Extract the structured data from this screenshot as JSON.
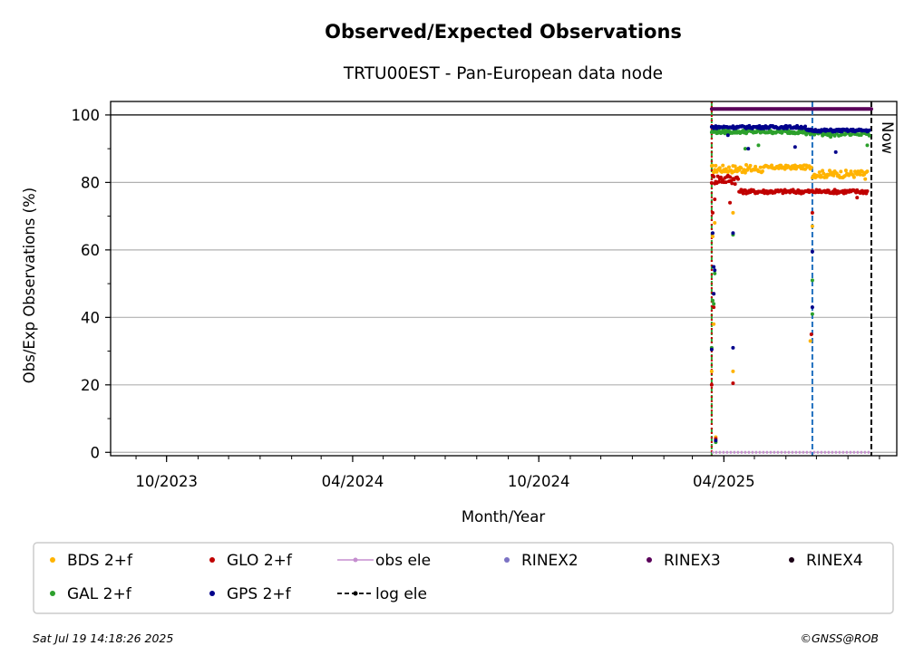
{
  "chart_data": {
    "type": "scatter",
    "title": "Observed/Expected Observations",
    "subtitle": "TRTU00EST - Pan-European data node",
    "xlabel": "Month/Year",
    "ylabel": "Obs/Exp Observations (%)",
    "ylim": [
      -1,
      104
    ],
    "xlim": [
      "2023-08-07",
      "2025-09-18"
    ],
    "yticks": [
      0,
      20,
      40,
      60,
      80,
      100
    ],
    "xticks": [
      {
        "date": "2023-10-01",
        "label": "10/2023"
      },
      {
        "date": "2024-04-01",
        "label": "04/2024"
      },
      {
        "date": "2024-10-01",
        "label": "10/2024"
      },
      {
        "date": "2025-04-01",
        "label": "04/2025"
      }
    ],
    "grid": "horizontal",
    "legend_position": "bottom",
    "reference_line_y": 100,
    "vertical_markers": [
      {
        "date": "2025-03-20",
        "color": "#2ca02c",
        "style": "dashed"
      },
      {
        "date": "2025-03-20",
        "color": "#c00000",
        "style": "dotted"
      },
      {
        "date": "2025-06-27",
        "color": "#1f6fbf",
        "style": "dashed"
      },
      {
        "date": "2025-08-24",
        "color": "#000000",
        "style": "dashed"
      }
    ],
    "now_label": "Now",
    "series": [
      {
        "name": "BDS 2+f",
        "color": "#ffb300",
        "marker": "dot",
        "segments": [
          {
            "start": "2025-03-20",
            "end": "2025-05-15",
            "base": 84,
            "jitter": 1.2
          },
          {
            "start": "2025-05-16",
            "end": "2025-06-26",
            "base": 84.5,
            "jitter": 0.6
          },
          {
            "start": "2025-06-27",
            "end": "2025-08-20",
            "base": 82.5,
            "jitter": 1.1
          }
        ],
        "outliers": [
          [
            "2025-03-20",
            24
          ],
          [
            "2025-03-21",
            64
          ],
          [
            "2025-03-23",
            68
          ],
          [
            "2025-03-22",
            38
          ],
          [
            "2025-03-24",
            4.5
          ],
          [
            "2025-04-10",
            71
          ],
          [
            "2025-04-10",
            24
          ],
          [
            "2025-06-27",
            67
          ],
          [
            "2025-06-25",
            33
          ],
          [
            "2025-07-05",
            82
          ],
          [
            "2025-08-18",
            81
          ]
        ]
      },
      {
        "name": "GLO 2+f",
        "color": "#c00000",
        "marker": "dot",
        "segments": [
          {
            "start": "2025-03-20",
            "end": "2025-04-15",
            "base": 81,
            "jitter": 1.5
          },
          {
            "start": "2025-04-16",
            "end": "2025-08-20",
            "base": 77.3,
            "jitter": 0.6
          }
        ],
        "outliers": [
          [
            "2025-03-20",
            20
          ],
          [
            "2025-03-21",
            71
          ],
          [
            "2025-03-22",
            47
          ],
          [
            "2025-03-22",
            43
          ],
          [
            "2025-03-23",
            75
          ],
          [
            "2025-03-24",
            4
          ],
          [
            "2025-04-07",
            74
          ],
          [
            "2025-04-10",
            20.5
          ],
          [
            "2025-06-27",
            71
          ],
          [
            "2025-06-26",
            35
          ],
          [
            "2025-08-10",
            75.5
          ]
        ]
      },
      {
        "name": "GAL 2+f",
        "color": "#2ca02c",
        "marker": "dot",
        "segments": [
          {
            "start": "2025-03-20",
            "end": "2025-06-20",
            "base": 95,
            "jitter": 0.5
          },
          {
            "start": "2025-06-21",
            "end": "2025-08-22",
            "base": 94.6,
            "jitter": 0.8
          }
        ],
        "outliers": [
          [
            "2025-03-20",
            31
          ],
          [
            "2025-03-21",
            45
          ],
          [
            "2025-03-22",
            44
          ],
          [
            "2025-03-23",
            53
          ],
          [
            "2025-03-24",
            3
          ],
          [
            "2025-04-10",
            64.5
          ],
          [
            "2025-04-22",
            90
          ],
          [
            "2025-05-05",
            91
          ],
          [
            "2025-06-27",
            51
          ],
          [
            "2025-06-27",
            41
          ],
          [
            "2025-07-15",
            93.5
          ],
          [
            "2025-08-20",
            91
          ]
        ]
      },
      {
        "name": "GPS 2+f",
        "color": "#00008b",
        "marker": "dot",
        "segments": [
          {
            "start": "2025-03-20",
            "end": "2025-06-20",
            "base": 96.4,
            "jitter": 0.4
          },
          {
            "start": "2025-06-21",
            "end": "2025-08-22",
            "base": 95.4,
            "jitter": 0.4
          }
        ],
        "outliers": [
          [
            "2025-03-20",
            30.5
          ],
          [
            "2025-03-21",
            65
          ],
          [
            "2025-03-22",
            55
          ],
          [
            "2025-03-22",
            47
          ],
          [
            "2025-03-23",
            54
          ],
          [
            "2025-03-24",
            3.5
          ],
          [
            "2025-04-10",
            65
          ],
          [
            "2025-04-10",
            31
          ],
          [
            "2025-04-05",
            94
          ],
          [
            "2025-04-25",
            90
          ],
          [
            "2025-06-10",
            90.5
          ],
          [
            "2025-06-27",
            59.5
          ],
          [
            "2025-06-27",
            43
          ],
          [
            "2025-07-20",
            89
          ]
        ]
      },
      {
        "name": "obs ele",
        "color": "#c58ecf",
        "marker": "line",
        "segments": [
          {
            "start": "2025-03-20",
            "end": "2025-08-24",
            "base": 0,
            "jitter": 0
          }
        ],
        "outliers": []
      },
      {
        "name": "RINEX2",
        "color": "#7b72c4",
        "marker": "dot",
        "segments": [],
        "outliers": []
      },
      {
        "name": "RINEX3",
        "color": "#5a005a",
        "marker": "dot",
        "segments": [
          {
            "start": "2025-03-20",
            "end": "2025-08-24",
            "base": 101.8,
            "jitter": 0
          }
        ],
        "outliers": []
      },
      {
        "name": "RINEX4",
        "color": "#1a0015",
        "marker": "dot",
        "segments": [],
        "outliers": []
      },
      {
        "name": "log ele",
        "color": "#000000",
        "marker": "dashed-line",
        "segments": [],
        "outliers": []
      }
    ],
    "legend_order": [
      "BDS 2+f",
      "GLO 2+f",
      "obs ele",
      "RINEX2",
      "RINEX3",
      "RINEX4",
      "GAL 2+f",
      "GPS 2+f",
      "log ele"
    ]
  },
  "footer": {
    "timestamp": "Sat Jul 19 14:18:26 2025",
    "copyright": "©GNSS@ROB"
  }
}
